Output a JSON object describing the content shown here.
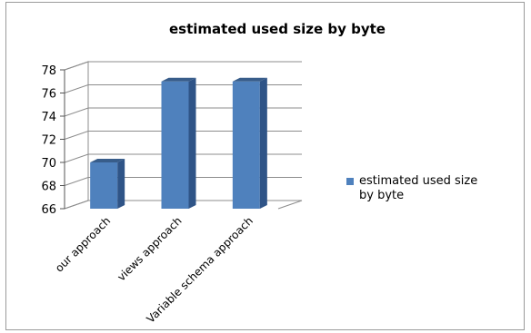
{
  "chart_data": {
    "type": "bar",
    "title": "estimated used size by byte",
    "categories": [
      "our approach",
      "views approach",
      "Variable schema approach"
    ],
    "series": [
      {
        "name": "estimated used size by byte",
        "values": [
          70,
          77,
          77
        ]
      }
    ],
    "ylim": [
      66,
      78
    ],
    "yticks": [
      66,
      68,
      70,
      72,
      74,
      76,
      78
    ],
    "grid": true,
    "legend": "right",
    "style": "3d-column",
    "colors": {
      "bar_front": "#4f81bd",
      "bar_side": "#2f5487",
      "bar_top": "#385d8a",
      "grid": "#8c8c8c"
    }
  }
}
